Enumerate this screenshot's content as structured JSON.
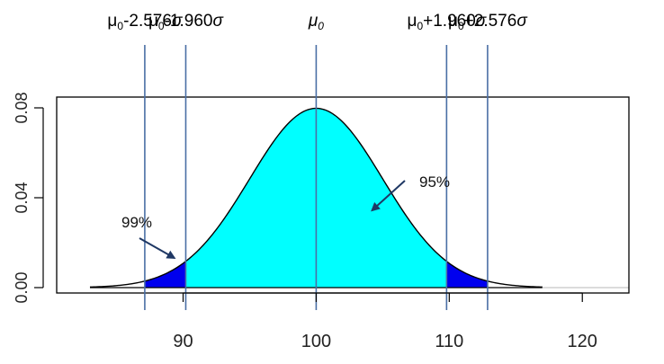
{
  "chart_data": {
    "type": "area",
    "distribution": "normal",
    "mean": 100,
    "sd": 5,
    "xlim": [
      80.5,
      123.5
    ],
    "ylim": [
      0,
      0.08
    ],
    "x_ticks": [
      "90",
      "100",
      "110",
      "120"
    ],
    "y_ticks": [
      "0.00",
      "0.04",
      "0.08"
    ],
    "x_tick_values": [
      90,
      100,
      110,
      120
    ],
    "y_tick_values": [
      0,
      0.04,
      0.08
    ],
    "curve_range": [
      83,
      117
    ],
    "reference_lines": [
      {
        "label": "-2.576",
        "z": -2.576,
        "x": 87.12
      },
      {
        "label": "-1.960",
        "z": -1.96,
        "x": 90.2
      },
      {
        "label": "",
        "z": 0,
        "x": 100
      },
      {
        "label": "+1.960",
        "z": 1.96,
        "x": 109.8
      },
      {
        "label": "+2.576",
        "z": 2.576,
        "x": 112.88
      }
    ],
    "regions": [
      {
        "name": "95%",
        "from": 90.2,
        "to": 109.8,
        "color": "#00ffff"
      },
      {
        "name": "99%",
        "from": 87.12,
        "to": 112.88,
        "color": "#0000ee"
      }
    ],
    "annotations": [
      {
        "text": "95%",
        "points_to_x": 104,
        "points_to_y": 0.036
      },
      {
        "text": "99%",
        "points_to_x": 89,
        "points_to_y": 0.012
      }
    ],
    "colors": {
      "inner_region": "#00ffff",
      "outer_region": "#0000ee",
      "reference_line": "#4a6fa5",
      "arrow": "#1f3864",
      "curve": "#000000"
    }
  },
  "labels": {
    "mu": "μ",
    "sub": "0",
    "sigma": "σ",
    "mu_center": "μ0"
  }
}
